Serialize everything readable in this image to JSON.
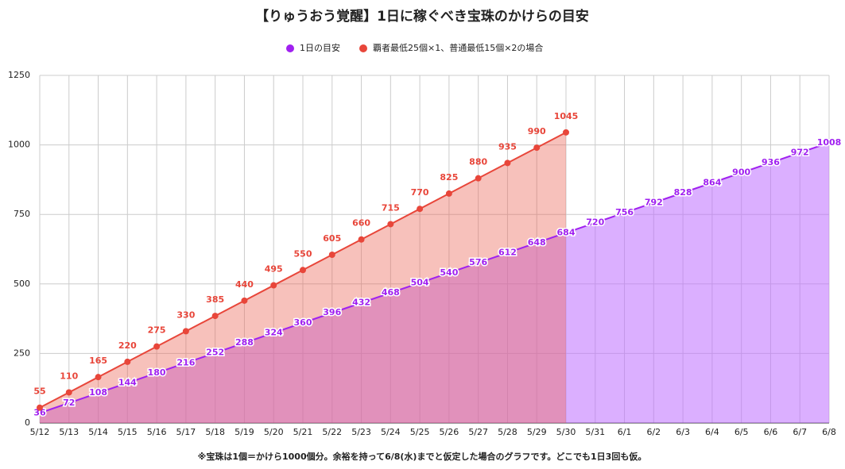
{
  "chart_data": {
    "type": "line",
    "title": "【りゅうおう覚醒】1日に稼ぐべき宝珠のかけらの目安",
    "footnote": "※宝珠は1個＝かけら1000個分。余裕を持って6/8(水)までと仮定した場合のグラフです。どこでも1日3回も仮。",
    "categories": [
      "5/12",
      "5/13",
      "5/14",
      "5/15",
      "5/16",
      "5/17",
      "5/18",
      "5/19",
      "5/20",
      "5/21",
      "5/22",
      "5/23",
      "5/24",
      "5/25",
      "5/26",
      "5/27",
      "5/28",
      "5/29",
      "5/30",
      "5/31",
      "6/1",
      "6/2",
      "6/3",
      "6/4",
      "6/5",
      "6/6",
      "6/7",
      "6/8"
    ],
    "series": [
      {
        "name": "1日の目安",
        "color": "#a020f0",
        "fill": "rgba(190,110,255,0.55)",
        "values": [
          36,
          72,
          108,
          144,
          180,
          216,
          252,
          288,
          324,
          360,
          396,
          432,
          468,
          504,
          540,
          576,
          612,
          648,
          684,
          720,
          756,
          792,
          828,
          864,
          900,
          936,
          972,
          1008
        ]
      },
      {
        "name": "覇者最低25個×1、普通最低15個×2の場合",
        "color": "#e8463a",
        "fill": "rgba(235,100,85,0.4)",
        "values": [
          55,
          110,
          165,
          220,
          275,
          330,
          385,
          440,
          495,
          550,
          605,
          660,
          715,
          770,
          825,
          880,
          935,
          990,
          1045,
          null,
          null,
          null,
          null,
          null,
          null,
          null,
          null,
          null
        ]
      }
    ],
    "ylim": [
      0,
      1250
    ],
    "yticks": [
      0,
      250,
      500,
      750,
      1000,
      1250
    ],
    "grid": true,
    "area": true,
    "legend": "top"
  }
}
